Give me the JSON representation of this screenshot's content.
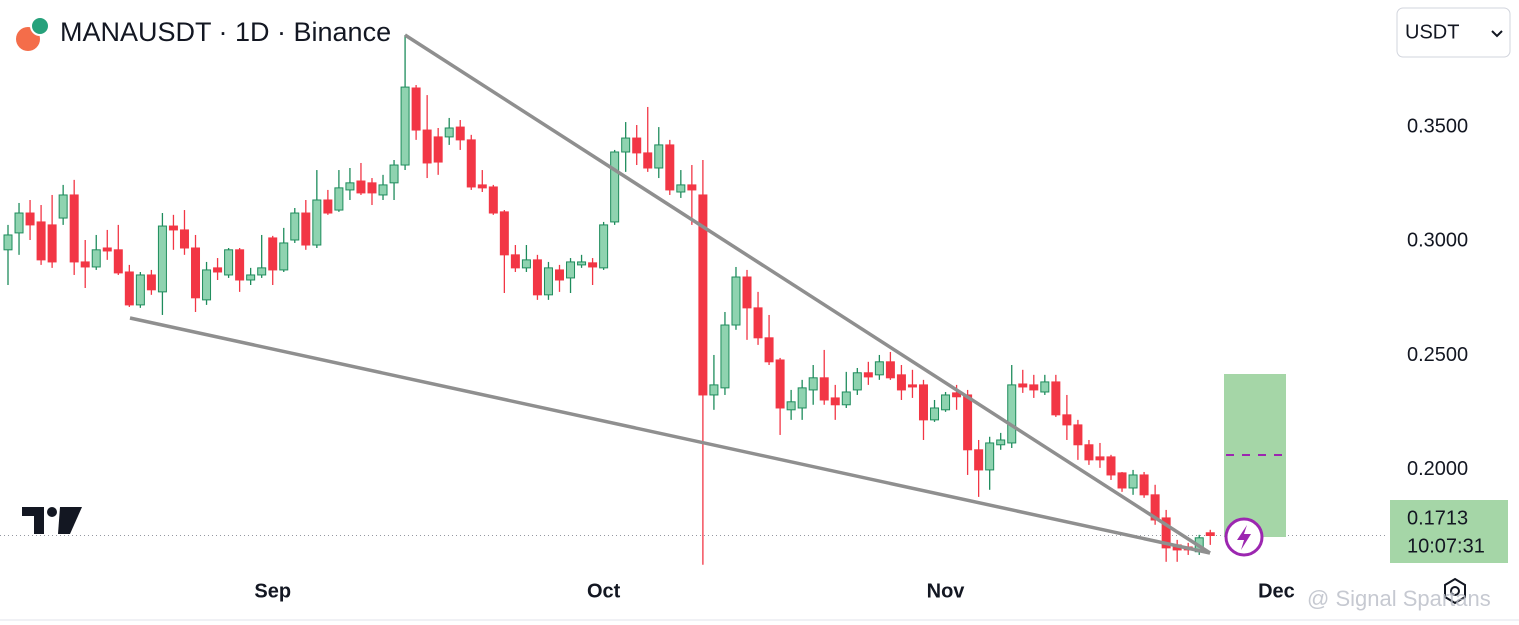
{
  "chart_data": {
    "type": "candlestick",
    "title": "MANAUSDT · 1D · Binance",
    "up_color": "#8fd3b0",
    "up_border": "#1e8c5c",
    "down_color": "#f23645",
    "open": [
      0.2963,
      0.3037,
      0.3124,
      0.3085,
      0.3072,
      0.3102,
      0.3203,
      0.291,
      0.2888,
      0.2971,
      0.2963,
      0.2866,
      0.2722,
      0.2853,
      0.2779,
      0.3067,
      0.305,
      0.2971,
      0.2744,
      0.2884,
      0.2853,
      0.2963,
      0.2831,
      0.2853,
      0.3015,
      0.2875,
      0.3006,
      0.3124,
      0.2984,
      0.3181,
      0.3137,
      0.3225,
      0.3264,
      0.3256,
      0.3203,
      0.3256,
      0.3334,
      0.3671,
      0.3487,
      0.3457,
      0.3457,
      0.35,
      0.3444,
      0.3247,
      0.3238,
      0.3129,
      0.2941,
      0.2884,
      0.2919,
      0.2766,
      0.2875,
      0.284,
      0.2897,
      0.2906,
      0.2884,
      0.3085,
      0.3391,
      0.3452,
      0.3387,
      0.3321,
      0.3422,
      0.3216,
      0.3247,
      0.3203,
      0.2328,
      0.2359,
      0.2634,
      0.2844,
      0.2709,
      0.2578,
      0.2481,
      0.2263,
      0.2271,
      0.235,
      0.2403,
      0.2315,
      0.2285,
      0.235,
      0.2425,
      0.2416,
      0.2473,
      0.2416,
      0.2372,
      0.2372,
      0.2219,
      0.2263,
      0.2337,
      0.2328,
      0.2088,
      0.2,
      0.211,
      0.2118,
      0.2376,
      0.2372,
      0.2341,
      0.2385,
      0.2241,
      0.2197,
      0.211,
      0.2057,
      0.2057,
      0.1987,
      0.1921,
      0.1978,
      0.1891,
      0.179,
      0.1672,
      0.1663,
      0.1642,
      0.1725
    ],
    "high": [
      0.3072,
      0.3168,
      0.3181,
      0.3159,
      0.3203,
      0.3247,
      0.3269,
      0.3006,
      0.3028,
      0.305,
      0.3072,
      0.2897,
      0.2866,
      0.2875,
      0.3124,
      0.3116,
      0.3137,
      0.3028,
      0.291,
      0.2927,
      0.2971,
      0.2971,
      0.2884,
      0.3028,
      0.3024,
      0.3059,
      0.3146,
      0.3181,
      0.3312,
      0.3225,
      0.3312,
      0.3321,
      0.3343,
      0.3277,
      0.3291,
      0.3356,
      0.3903,
      0.3684,
      0.364,
      0.3496,
      0.354,
      0.3531,
      0.3466,
      0.3312,
      0.3247,
      0.3137,
      0.2984,
      0.2984,
      0.2941,
      0.291,
      0.2897,
      0.2927,
      0.2941,
      0.2927,
      0.3085,
      0.34,
      0.3522,
      0.3509,
      0.3588,
      0.35,
      0.3444,
      0.3312,
      0.3334,
      0.3356,
      0.2503,
      0.2691,
      0.2888,
      0.2875,
      0.2779,
      0.2678,
      0.249,
      0.235,
      0.2394,
      0.2459,
      0.2525,
      0.2372,
      0.2429,
      0.2446,
      0.2473,
      0.2503,
      0.2516,
      0.2459,
      0.2438,
      0.2394,
      0.2306,
      0.2341,
      0.2372,
      0.235,
      0.2131,
      0.2145,
      0.2162,
      0.2459,
      0.2438,
      0.2416,
      0.2416,
      0.2416,
      0.2328,
      0.2219,
      0.2131,
      0.2118,
      0.2066,
      0.1991,
      0.2,
      0.1991,
      0.1935,
      0.1825,
      0.1694,
      0.1681,
      0.1716,
      0.1738
    ],
    "low": [
      0.2809,
      0.2941,
      0.3006,
      0.2897,
      0.2884,
      0.3072,
      0.2853,
      0.2796,
      0.2875,
      0.2919,
      0.2853,
      0.2713,
      0.2709,
      0.2766,
      0.2678,
      0.2963,
      0.2941,
      0.2691,
      0.2722,
      0.2831,
      0.284,
      0.2779,
      0.2809,
      0.284,
      0.2809,
      0.2866,
      0.2993,
      0.2963,
      0.2971,
      0.3116,
      0.3129,
      0.3181,
      0.3203,
      0.3159,
      0.3181,
      0.3181,
      0.3312,
      0.3444,
      0.3277,
      0.3291,
      0.3422,
      0.34,
      0.3225,
      0.3216,
      0.3116,
      0.2774,
      0.2866,
      0.2866,
      0.2744,
      0.2744,
      0.2779,
      0.2774,
      0.2884,
      0.2809,
      0.2875,
      0.3072,
      0.3304,
      0.3334,
      0.3304,
      0.3277,
      0.3203,
      0.319,
      0.3072,
      0.1585,
      0.2263,
      0.2328,
      0.2613,
      0.2569,
      0.2547,
      0.2459,
      0.2153,
      0.2219,
      0.2219,
      0.2285,
      0.2285,
      0.2219,
      0.2271,
      0.2328,
      0.2372,
      0.2394,
      0.2394,
      0.2306,
      0.2315,
      0.2131,
      0.221,
      0.2254,
      0.2263,
      0.1978,
      0.1882,
      0.1913,
      0.2088,
      0.2096,
      0.2337,
      0.2315,
      0.2328,
      0.2232,
      0.2131,
      0.2044,
      0.2022,
      0.2009,
      0.1956,
      0.1904,
      0.1891,
      0.1878,
      0.176,
      0.1598,
      0.1598,
      0.1628,
      0.1628,
      0.1672
    ],
    "close": [
      0.3028,
      0.3124,
      0.3072,
      0.2919,
      0.291,
      0.3203,
      0.291,
      0.2888,
      0.2963,
      0.2958,
      0.2862,
      0.2722,
      0.2853,
      0.2788,
      0.3067,
      0.305,
      0.2971,
      0.2753,
      0.2875,
      0.2866,
      0.2963,
      0.2831,
      0.2853,
      0.2884,
      0.2875,
      0.2993,
      0.3124,
      0.2984,
      0.3181,
      0.3124,
      0.3234,
      0.3256,
      0.3212,
      0.3212,
      0.3247,
      0.3334,
      0.3675,
      0.3487,
      0.3343,
      0.3347,
      0.3496,
      0.3444,
      0.3238,
      0.3234,
      0.3124,
      0.2941,
      0.2884,
      0.2919,
      0.2766,
      0.2884,
      0.2831,
      0.291,
      0.291,
      0.2888,
      0.3072,
      0.3391,
      0.3452,
      0.3387,
      0.3321,
      0.3422,
      0.3225,
      0.3247,
      0.3225,
      0.2328,
      0.2372,
      0.2634,
      0.2844,
      0.2709,
      0.2578,
      0.2473,
      0.2271,
      0.2298,
      0.2359,
      0.2403,
      0.2306,
      0.2285,
      0.2341,
      0.2425,
      0.2407,
      0.2473,
      0.2403,
      0.235,
      0.2363,
      0.2219,
      0.2271,
      0.2328,
      0.232,
      0.2088,
      0.2,
      0.2118,
      0.2131,
      0.2372,
      0.2363,
      0.235,
      0.2385,
      0.2241,
      0.2197,
      0.211,
      0.2044,
      0.2044,
      0.1978,
      0.1921,
      0.1978,
      0.1891,
      0.1781,
      0.1659,
      0.165,
      0.165,
      0.1703,
      0.1713
    ],
    "ylim": [
      0.1584,
      0.4056
    ],
    "yticks": [
      {
        "value": 0.35,
        "label": "0.3500"
      },
      {
        "value": 0.3,
        "label": "0.3000"
      },
      {
        "value": 0.25,
        "label": "0.2500"
      },
      {
        "value": 0.2,
        "label": "0.2000"
      }
    ],
    "xticks": [
      {
        "value": 24,
        "label": "Sep"
      },
      {
        "value": 54,
        "label": "Oct"
      },
      {
        "value": 85,
        "label": "Nov"
      },
      {
        "value": 115,
        "label": "Dec"
      }
    ],
    "countdown": "10:07:31"
  },
  "toolbar": {
    "currency": "USDT"
  },
  "watermark": "@ Signal Spartans"
}
